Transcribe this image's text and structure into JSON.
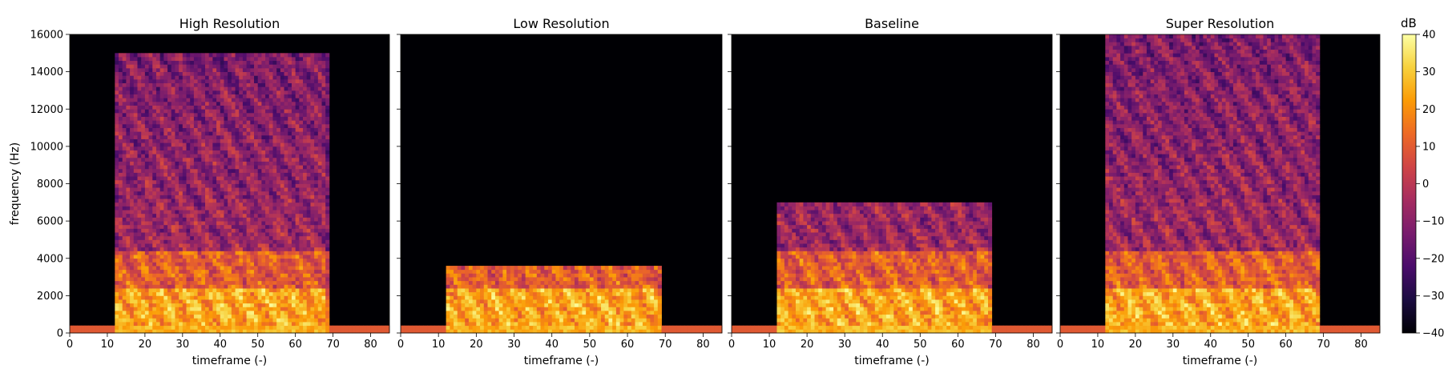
{
  "chart_data": [
    {
      "type": "heatmap",
      "title": "High Resolution",
      "xlabel": "timeframe (-)",
      "ylabel": "frequency (Hz)",
      "xlim": [
        0,
        85
      ],
      "ylim": [
        0,
        16000
      ],
      "xticks": [
        0,
        10,
        20,
        30,
        40,
        50,
        60,
        70,
        80
      ],
      "yticks": [
        0,
        2000,
        4000,
        6000,
        8000,
        10000,
        12000,
        14000,
        16000
      ],
      "max_freq": 15000,
      "speech_segment": [
        12,
        68
      ]
    },
    {
      "type": "heatmap",
      "title": "Low Resolution",
      "xlabel": "timeframe (-)",
      "xlim": [
        0,
        85
      ],
      "ylim": [
        0,
        16000
      ],
      "xticks": [
        0,
        10,
        20,
        30,
        40,
        50,
        60,
        70,
        80
      ],
      "max_freq": 3500,
      "speech_segment": [
        12,
        68
      ]
    },
    {
      "type": "heatmap",
      "title": "Baseline",
      "xlabel": "timeframe (-)",
      "xlim": [
        0,
        85
      ],
      "ylim": [
        0,
        16000
      ],
      "xticks": [
        0,
        10,
        20,
        30,
        40,
        50,
        60,
        70,
        80
      ],
      "max_freq": 7000,
      "speech_segment": [
        12,
        68
      ]
    },
    {
      "type": "heatmap",
      "title": "Super Resolution",
      "xlabel": "timeframe (-)",
      "xlim": [
        0,
        85
      ],
      "ylim": [
        0,
        16000
      ],
      "xticks": [
        0,
        10,
        20,
        30,
        40,
        50,
        60,
        70,
        80
      ],
      "max_freq": 16000,
      "speech_segment": [
        12,
        68
      ]
    }
  ],
  "colorbar": {
    "label": "dB",
    "min": -40,
    "max": 40,
    "ticks": [
      40,
      30,
      20,
      10,
      0,
      -10,
      -20,
      -30,
      -40
    ],
    "tick_labels": [
      "40",
      "30",
      "20",
      "10",
      "0",
      "−10",
      "−20",
      "−30",
      "−40"
    ],
    "colormap": "inferno",
    "colors": [
      "#000004",
      "#1b0c41",
      "#4a0c6b",
      "#781c6d",
      "#a52c60",
      "#cf4446",
      "#ed6925",
      "#fb9b06",
      "#f7d13d",
      "#fcffa4"
    ]
  }
}
